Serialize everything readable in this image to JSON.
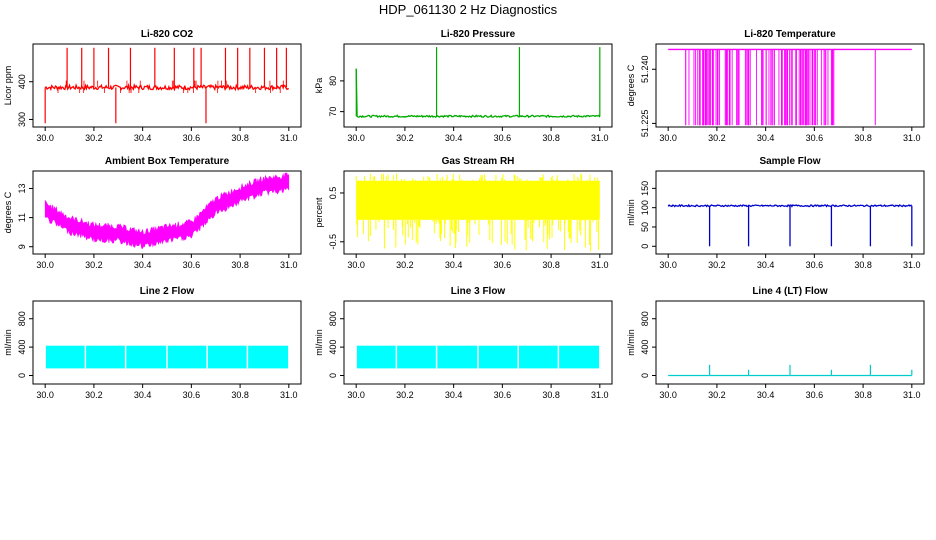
{
  "page": {
    "title": "HDP_061130  2 Hz Diagnostics"
  },
  "chart_data": [
    {
      "id": "co2",
      "type": "line",
      "title": "Li-820 CO2",
      "ylabel": "Licor ppm",
      "color": "#ff0000",
      "xlim": [
        29.95,
        31.05
      ],
      "ylim": [
        280,
        500
      ],
      "xticks": [
        30.0,
        30.2,
        30.4,
        30.6,
        30.8,
        31.0
      ],
      "xtick_labels": [
        "30.0",
        "30.2",
        "30.4",
        "30.6",
        "30.8",
        "31.0"
      ],
      "yticks": [
        300,
        400
      ],
      "ytick_labels": [
        "300",
        "400"
      ],
      "series": [
        {
          "name": "CO2",
          "baseline": 385,
          "noise": 6,
          "spikes_up": [
            30.09,
            30.15,
            30.2,
            30.26,
            30.35,
            30.45,
            30.53,
            30.61,
            30.64,
            30.74,
            30.79,
            30.84,
            30.9,
            30.95,
            30.99
          ],
          "spike_top": 490,
          "spikes_down": [
            30.0,
            30.29,
            30.66
          ],
          "spike_bottom": 290
        }
      ]
    },
    {
      "id": "pressure",
      "type": "line",
      "title": "Li-820 Pressure",
      "ylabel": "kPa",
      "color": "#00aa00",
      "xlim": [
        29.95,
        31.05
      ],
      "ylim": [
        65,
        92
      ],
      "xticks": [
        30.0,
        30.2,
        30.4,
        30.6,
        30.8,
        31.0
      ],
      "xtick_labels": [
        "30.0",
        "30.2",
        "30.4",
        "30.6",
        "30.8",
        "31.0"
      ],
      "yticks": [
        70,
        80
      ],
      "ytick_labels": [
        "70",
        "80"
      ],
      "series": [
        {
          "name": "Pressure",
          "baseline": 68.5,
          "noise": 0.3,
          "spikes_up": [
            30.33,
            30.67,
            31.0
          ],
          "spike_top": 91,
          "start_value": 84
        }
      ]
    },
    {
      "id": "licor_temp",
      "type": "line",
      "title": "Li-820 Temperature",
      "ylabel": "degrees C",
      "color": "#ff00ff",
      "xlim": [
        29.95,
        31.05
      ],
      "ylim": [
        51.224,
        51.247
      ],
      "xticks": [
        30.0,
        30.2,
        30.4,
        30.6,
        30.8,
        31.0
      ],
      "xtick_labels": [
        "30.0",
        "30.2",
        "30.4",
        "30.6",
        "30.8",
        "31.0"
      ],
      "yticks": [
        51.225,
        51.24
      ],
      "ytick_labels": [
        "51.225",
        "51.240"
      ],
      "series": [
        {
          "name": "Temperature",
          "high": 51.2455,
          "low": 51.2245,
          "dense_from": 30.07,
          "dense_to": 30.69,
          "extra_drops": [
            30.85
          ]
        }
      ]
    },
    {
      "id": "box_temp",
      "type": "area",
      "title": "Ambient Box Temperature",
      "ylabel": "degrees C",
      "color": "#ff00ff",
      "xlim": [
        29.95,
        31.05
      ],
      "ylim": [
        8.5,
        14.2
      ],
      "xticks": [
        30.0,
        30.2,
        30.4,
        30.6,
        30.8,
        31.0
      ],
      "xtick_labels": [
        "30.0",
        "30.2",
        "30.4",
        "30.6",
        "30.8",
        "31.0"
      ],
      "yticks": [
        9,
        11,
        13
      ],
      "ytick_labels": [
        "9",
        "11",
        "13"
      ],
      "series": [
        {
          "name": "Box temp",
          "x": [
            30.0,
            30.1,
            30.2,
            30.3,
            30.4,
            30.5,
            30.6,
            30.7,
            30.8,
            30.9,
            31.0
          ],
          "y": [
            11.5,
            10.5,
            10.0,
            9.9,
            9.5,
            9.9,
            10.2,
            11.8,
            12.6,
            13.2,
            13.4
          ],
          "band": 0.7
        }
      ]
    },
    {
      "id": "rh",
      "type": "area",
      "title": "Gas Stream RH",
      "ylabel": "percent",
      "color": "#ffff00",
      "xlim": [
        29.95,
        31.05
      ],
      "ylim": [
        -0.75,
        0.95
      ],
      "xticks": [
        30.0,
        30.2,
        30.4,
        30.6,
        30.8,
        31.0
      ],
      "xtick_labels": [
        "30.0",
        "30.2",
        "30.4",
        "30.6",
        "30.8",
        "31.0"
      ],
      "yticks": [
        -0.5,
        0.5
      ],
      "ytick_labels": [
        "-0.5",
        "0.5"
      ],
      "series": [
        {
          "name": "RH",
          "band_low": -0.05,
          "band_high": 0.75,
          "spike_low": -0.7,
          "spike_high": 0.9
        }
      ]
    },
    {
      "id": "sample_flow",
      "type": "line",
      "title": "Sample Flow",
      "ylabel": "ml/min",
      "color": "#0000cc",
      "xlim": [
        29.95,
        31.05
      ],
      "ylim": [
        -20,
        195
      ],
      "xticks": [
        30.0,
        30.2,
        30.4,
        30.6,
        30.8,
        31.0
      ],
      "xtick_labels": [
        "30.0",
        "30.2",
        "30.4",
        "30.6",
        "30.8",
        "31.0"
      ],
      "yticks": [
        0,
        50,
        100,
        150
      ],
      "ytick_labels": [
        "0",
        "50",
        "100",
        "150"
      ],
      "series": [
        {
          "name": "Sample flow",
          "baseline": 105,
          "noise": 2,
          "drops": [
            30.17,
            30.33,
            30.5,
            30.67,
            30.83,
            31.0
          ],
          "drop_bottom": 0
        }
      ]
    },
    {
      "id": "line2",
      "type": "area",
      "title": "Line 2 Flow",
      "ylabel": "ml/min",
      "color": "#00ffff",
      "xlim": [
        29.95,
        31.05
      ],
      "ylim": [
        -120,
        1050
      ],
      "xticks": [
        30.0,
        30.2,
        30.4,
        30.6,
        30.8,
        31.0
      ],
      "xtick_labels": [
        "30.0",
        "30.2",
        "30.4",
        "30.6",
        "30.8",
        "31.0"
      ],
      "yticks": [
        0,
        400,
        800
      ],
      "ytick_labels": [
        "0",
        "400",
        "800"
      ],
      "series": [
        {
          "name": "Line 2",
          "band_low": 100,
          "band_high": 420,
          "gaps": [
            30.165,
            30.33,
            30.5,
            30.665,
            30.83
          ]
        }
      ]
    },
    {
      "id": "line3",
      "type": "area",
      "title": "Line 3 Flow",
      "ylabel": "ml/min",
      "color": "#00ffff",
      "xlim": [
        29.95,
        31.05
      ],
      "ylim": [
        -120,
        1050
      ],
      "xticks": [
        30.0,
        30.2,
        30.4,
        30.6,
        30.8,
        31.0
      ],
      "xtick_labels": [
        "30.0",
        "30.2",
        "30.4",
        "30.6",
        "30.8",
        "31.0"
      ],
      "yticks": [
        0,
        400,
        800
      ],
      "ytick_labels": [
        "0",
        "400",
        "800"
      ],
      "series": [
        {
          "name": "Line 3",
          "band_low": 100,
          "band_high": 420,
          "gaps": [
            30.165,
            30.33,
            30.5,
            30.665,
            30.83
          ]
        }
      ]
    },
    {
      "id": "line4",
      "type": "line",
      "title": "Line 4 (LT) Flow",
      "ylabel": "ml/min",
      "color": "#00cccc",
      "xlim": [
        29.95,
        31.05
      ],
      "ylim": [
        -120,
        1050
      ],
      "xticks": [
        30.0,
        30.2,
        30.4,
        30.6,
        30.8,
        31.0
      ],
      "xtick_labels": [
        "30.0",
        "30.2",
        "30.4",
        "30.6",
        "30.8",
        "31.0"
      ],
      "yticks": [
        0,
        400,
        800
      ],
      "ytick_labels": [
        "0",
        "400",
        "800"
      ],
      "series": [
        {
          "name": "Line 4",
          "baseline": 0,
          "spikes_up": [
            30.17,
            30.33,
            30.5,
            30.67,
            30.83,
            31.0
          ],
          "spike_heights": [
            150,
            80,
            150,
            80,
            150,
            80
          ]
        }
      ]
    }
  ]
}
